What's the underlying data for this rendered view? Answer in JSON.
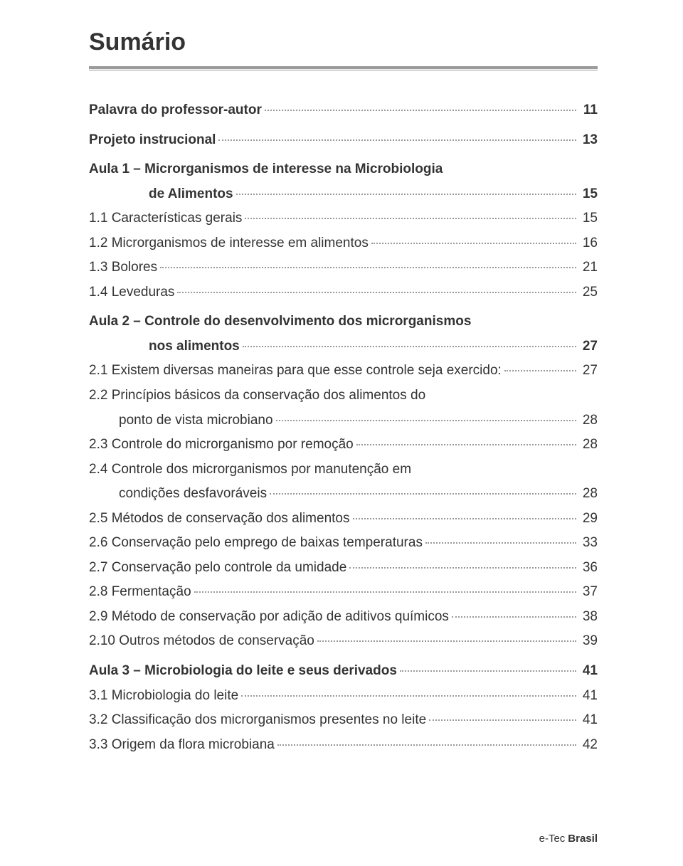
{
  "title": "Sumário",
  "footer": {
    "prefix": "e-Tec ",
    "brand": "Brasil"
  },
  "entries": [
    {
      "label": "Palavra do professor-autor",
      "page": "11",
      "bold": true
    },
    {
      "label": "Projeto instrucional",
      "page": "13",
      "bold": true,
      "gap": true
    },
    {
      "label": "Aula 1 – Microrganismos de interesse na Microbiologia",
      "bold": true,
      "gap": true,
      "noleader": true,
      "nopage": true
    },
    {
      "indentLabel": "de Alimentos",
      "page": "15",
      "bold": true,
      "cont": true
    },
    {
      "label": "1.1 Características gerais",
      "page": "15"
    },
    {
      "label": "1.2 Microrganismos de interesse em alimentos",
      "page": "16"
    },
    {
      "label": "1.3 Bolores",
      "page": "21"
    },
    {
      "label": "1.4 Leveduras",
      "page": "25"
    },
    {
      "label": "Aula 2 – Controle do desenvolvimento dos microrganismos",
      "bold": true,
      "gap": true,
      "noleader": true,
      "nopage": true
    },
    {
      "indentLabel": "nos alimentos",
      "page": "27",
      "bold": true,
      "cont": true
    },
    {
      "label": "2.1 Existem diversas maneiras para que esse controle seja exercido:",
      "page": "27"
    },
    {
      "label": "2.2 Princípios básicos da conservação dos alimentos do",
      "noleader": true,
      "nopage": true
    },
    {
      "indentLabel": "ponto de vista microbiano",
      "page": "28",
      "cont": true,
      "sub": true
    },
    {
      "label": "2.3 Controle do microrganismo por remoção",
      "page": "28"
    },
    {
      "label": "2.4 Controle dos microrganismos por manutenção em",
      "noleader": true,
      "nopage": true
    },
    {
      "indentLabel": "condições desfavoráveis",
      "page": "28",
      "cont": true,
      "sub": true
    },
    {
      "label": "2.5 Métodos de conservação dos alimentos",
      "page": "29"
    },
    {
      "label": "2.6 Conservação pelo emprego de baixas temperaturas",
      "page": "33"
    },
    {
      "label": "2.7 Conservação pelo controle da umidade",
      "page": "36"
    },
    {
      "label": "2.8 Fermentação",
      "page": "37"
    },
    {
      "label": "2.9 Método de conservação por adição de aditivos químicos",
      "page": "38"
    },
    {
      "label": "2.10 Outros métodos de conservação",
      "page": "39"
    },
    {
      "label": "Aula 3 – Microbiologia do leite e seus derivados",
      "page": "41",
      "bold": true,
      "gap": true
    },
    {
      "label": "3.1 Microbiologia do leite",
      "page": "41"
    },
    {
      "label": "3.2 Classificação dos microrganismos presentes no leite",
      "page": "41"
    },
    {
      "label": "3.3 Origem da flora microbiana",
      "page": "42"
    }
  ]
}
